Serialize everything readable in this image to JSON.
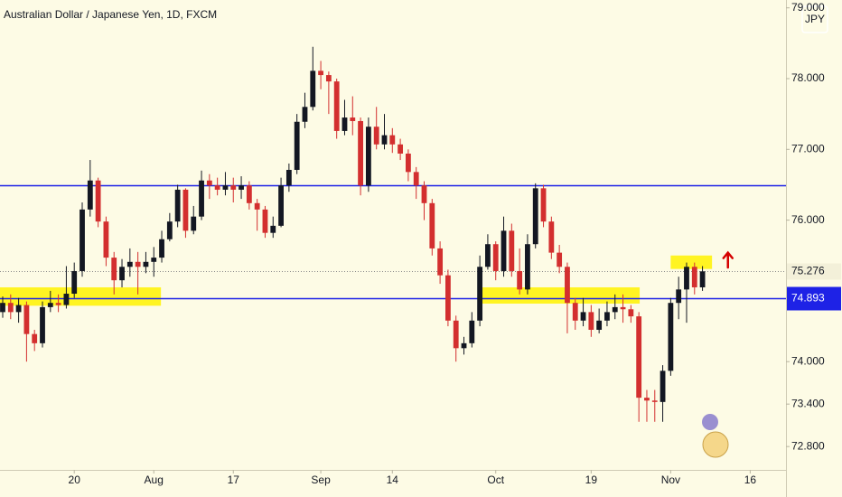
{
  "chart_data": {
    "type": "candlestick",
    "title": "Australian Dollar / Japanese Yen, 1D, FXCM",
    "currency": "JPY",
    "up_color": "#131722",
    "down_color": "#d32f2f",
    "open": [
      74.7,
      74.83,
      74.7,
      74.8,
      74.39,
      74.26,
      74.77,
      74.83,
      74.8,
      74.96,
      75.28,
      76.15,
      76.56,
      75.98,
      75.47,
      75.15,
      75.34,
      75.41,
      75.34,
      75.41,
      75.47,
      75.73,
      75.98,
      76.43,
      75.85,
      76.05,
      76.56,
      76.49,
      76.43,
      76.49,
      76.43,
      76.49,
      76.24,
      76.15,
      75.82,
      75.92,
      76.49,
      76.71,
      77.39,
      77.6,
      78.11,
      78.05,
      77.96,
      77.26,
      77.45,
      77.4,
      76.49,
      77.32,
      77.07,
      77.2,
      77.07,
      76.94,
      76.68,
      76.49,
      76.24,
      75.6,
      75.22,
      74.58,
      74.19,
      74.26,
      74.58,
      75.34,
      75.66,
      75.28,
      75.85,
      75.28,
      75.02,
      75.66,
      76.45,
      75.98,
      75.54,
      75.34,
      74.83,
      74.58,
      74.7,
      74.45,
      74.58,
      74.7,
      74.77,
      74.74,
      74.64,
      73.49,
      73.45,
      73.43,
      73.87,
      74.83,
      75.02,
      75.34,
      75.05
    ],
    "high": [
      74.92,
      74.95,
      74.9,
      74.85,
      74.45,
      74.85,
      75.0,
      74.95,
      75.35,
      75.4,
      76.25,
      76.85,
      76.6,
      76.05,
      75.55,
      75.45,
      75.6,
      75.55,
      75.55,
      75.62,
      75.85,
      76.1,
      76.5,
      76.45,
      76.2,
      76.7,
      76.65,
      76.6,
      76.68,
      76.6,
      76.62,
      76.55,
      76.3,
      76.2,
      76.05,
      76.6,
      76.8,
      77.5,
      77.8,
      78.45,
      78.25,
      78.1,
      78.0,
      77.7,
      77.75,
      77.45,
      77.45,
      77.6,
      77.5,
      77.3,
      77.15,
      77.0,
      76.75,
      76.55,
      76.3,
      75.7,
      75.3,
      74.65,
      74.35,
      74.7,
      75.5,
      75.8,
      75.7,
      76.05,
      75.95,
      75.6,
      75.8,
      76.52,
      76.5,
      76.05,
      75.65,
      75.4,
      74.9,
      74.9,
      74.8,
      74.75,
      74.85,
      74.95,
      74.95,
      74.8,
      74.7,
      73.6,
      73.6,
      73.95,
      74.9,
      75.2,
      75.4,
      75.4,
      75.35
    ],
    "low": [
      74.62,
      74.6,
      74.55,
      74.0,
      74.15,
      74.2,
      74.7,
      74.7,
      74.75,
      74.9,
      75.2,
      76.05,
      75.9,
      75.35,
      74.95,
      75.05,
      75.2,
      74.95,
      75.25,
      75.2,
      75.4,
      75.7,
      75.9,
      75.75,
      75.8,
      76.0,
      76.3,
      76.35,
      76.35,
      76.25,
      76.3,
      76.15,
      75.85,
      75.75,
      75.75,
      75.9,
      76.4,
      76.65,
      77.3,
      77.55,
      77.85,
      77.5,
      77.15,
      77.2,
      77.2,
      76.35,
      76.4,
      77.0,
      77.0,
      76.95,
      76.85,
      76.55,
      76.3,
      76.0,
      75.5,
      75.1,
      74.5,
      74.0,
      74.1,
      74.2,
      74.5,
      75.3,
      75.15,
      75.2,
      75.2,
      74.95,
      74.95,
      75.6,
      75.9,
      75.45,
      75.25,
      74.4,
      74.45,
      74.5,
      74.35,
      74.4,
      74.5,
      74.6,
      74.55,
      74.55,
      73.15,
      73.15,
      73.15,
      73.15,
      73.8,
      74.6,
      74.55,
      74.95,
      75.0
    ],
    "close": [
      74.83,
      74.7,
      74.8,
      74.39,
      74.26,
      74.77,
      74.83,
      74.8,
      74.96,
      75.28,
      76.15,
      76.56,
      75.98,
      75.47,
      75.15,
      75.34,
      75.41,
      75.34,
      75.41,
      75.47,
      75.73,
      75.98,
      76.43,
      75.85,
      76.05,
      76.56,
      76.49,
      76.43,
      76.49,
      76.43,
      76.49,
      76.24,
      76.15,
      75.82,
      75.92,
      76.49,
      76.71,
      77.39,
      77.6,
      78.11,
      78.05,
      77.96,
      77.26,
      77.45,
      77.4,
      76.49,
      77.32,
      77.07,
      77.2,
      77.07,
      76.94,
      76.68,
      76.49,
      76.24,
      75.6,
      75.22,
      74.58,
      74.19,
      74.26,
      74.58,
      75.34,
      75.66,
      75.28,
      75.85,
      75.28,
      75.02,
      75.66,
      76.45,
      75.98,
      75.54,
      75.34,
      74.83,
      74.58,
      74.7,
      74.45,
      74.58,
      74.7,
      74.77,
      74.74,
      74.64,
      73.49,
      73.45,
      73.43,
      73.87,
      74.83,
      75.02,
      75.34,
      75.05,
      75.276
    ],
    "xlim": [
      -0.34,
      98.5
    ],
    "xticks": [
      {
        "value": 9,
        "label": "20"
      },
      {
        "value": 19,
        "label": "Aug"
      },
      {
        "value": 29,
        "label": "17"
      },
      {
        "value": 40,
        "label": "Sep"
      },
      {
        "value": 49,
        "label": "14"
      },
      {
        "value": 62,
        "label": "Oct"
      },
      {
        "value": 74,
        "label": "19"
      },
      {
        "value": 84,
        "label": "Nov"
      },
      {
        "value": 94,
        "label": "16"
      }
    ],
    "ylim": [
      72.47,
      79.111
    ],
    "yticks": [
      {
        "value": 79,
        "label": "79.000"
      },
      {
        "value": 78,
        "label": "78.000"
      },
      {
        "value": 77,
        "label": "77.000"
      },
      {
        "value": 76,
        "label": "76.000"
      },
      {
        "value": 74,
        "label": "74.000"
      },
      {
        "value": 73.4,
        "label": "73.400"
      },
      {
        "value": 72.8,
        "label": "72.800"
      }
    ],
    "last_price": 75.276,
    "levels": [
      {
        "value": 76.49,
        "color": "#1e22e6"
      },
      {
        "value": 74.893,
        "color": "#1e22e6"
      }
    ],
    "zones": [
      {
        "x": [
          -0.34,
          19.9
        ],
        "y": [
          74.79,
          75.05
        ],
        "color": "#fff200"
      },
      {
        "x": [
          59.9,
          80.1
        ],
        "y": [
          74.82,
          75.05
        ],
        "color": "#fff200"
      },
      {
        "x": [
          84,
          89.2
        ],
        "y": [
          75.31,
          75.5
        ],
        "color": "#fff200"
      }
    ],
    "arrow": {
      "x": 91.2,
      "y": [
        75.33,
        75.54
      ],
      "color": "#d50000"
    }
  }
}
